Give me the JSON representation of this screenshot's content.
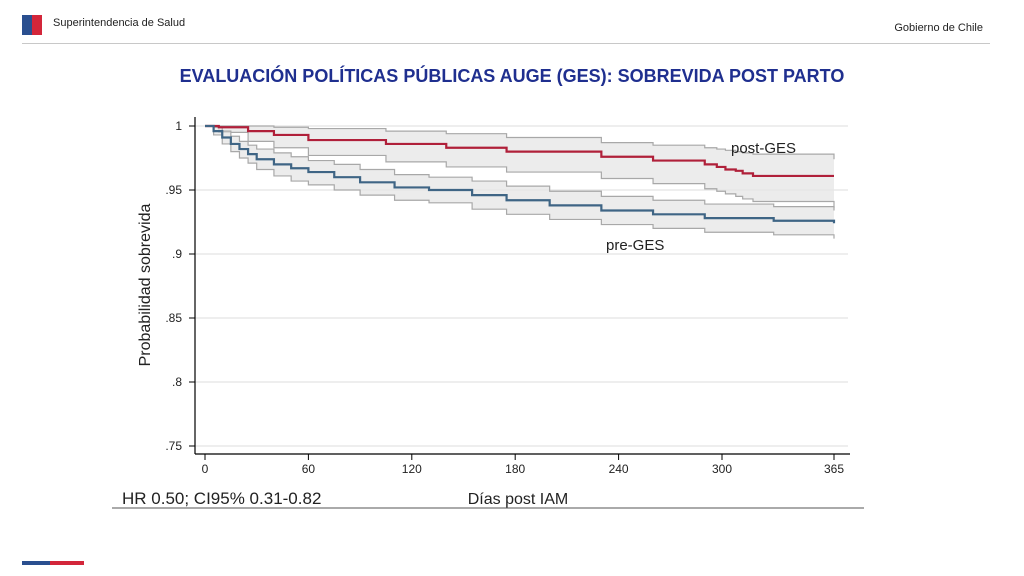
{
  "header": {
    "org_name": "Superintendencia de Salud",
    "government": "Gobierno de Chile"
  },
  "title": "EVALUACIÓN POLÍTICAS PÚBLICAS AUGE (GES): SOBREVIDA POST PARTO",
  "colors": {
    "title": "#1f2f8f",
    "post_ges": "#b0203a",
    "pre_ges": "#3f6585",
    "ci_band": "#e6e6e6",
    "flag_blue": "#2a4f8f",
    "flag_red": "#d3263a"
  },
  "chart_data": {
    "type": "line",
    "ylabel": "Probabilidad sobrevida",
    "xlabel": "Días post IAM",
    "annotation": "HR 0.50; CI95% 0.31-0.82",
    "xlim": [
      0,
      365
    ],
    "ylim": [
      0.75,
      1.0
    ],
    "x_ticks": [
      "0",
      "60",
      "120",
      "180",
      "240",
      "300",
      "365"
    ],
    "y_ticks": [
      "1",
      ".95",
      ".9",
      ".85",
      ".8",
      ".75"
    ],
    "grid": true,
    "step": true,
    "series": [
      {
        "name": "post-GES",
        "color": "#b0203a",
        "x": [
          0,
          8,
          25,
          40,
          60,
          105,
          140,
          175,
          230,
          260,
          290,
          297,
          302,
          308,
          312,
          318,
          365
        ],
        "values": [
          1.0,
          0.999,
          0.996,
          0.993,
          0.989,
          0.986,
          0.983,
          0.98,
          0.976,
          0.973,
          0.97,
          0.968,
          0.966,
          0.965,
          0.963,
          0.961,
          0.961
        ],
        "ci_upper": [
          1.0,
          1.0,
          1.0,
          0.999,
          0.998,
          0.996,
          0.994,
          0.991,
          0.987,
          0.985,
          0.983,
          0.982,
          0.981,
          0.98,
          0.979,
          0.978,
          0.974
        ],
        "ci_lower": [
          1.0,
          0.995,
          0.988,
          0.983,
          0.977,
          0.972,
          0.968,
          0.964,
          0.959,
          0.955,
          0.951,
          0.949,
          0.947,
          0.945,
          0.943,
          0.941,
          0.936
        ]
      },
      {
        "name": "pre-GES",
        "color": "#3f6585",
        "x": [
          0,
          5,
          10,
          15,
          20,
          25,
          30,
          40,
          50,
          60,
          75,
          90,
          110,
          130,
          155,
          175,
          200,
          230,
          260,
          290,
          330,
          365
        ],
        "values": [
          1.0,
          0.996,
          0.991,
          0.986,
          0.982,
          0.978,
          0.974,
          0.97,
          0.967,
          0.964,
          0.96,
          0.956,
          0.952,
          0.95,
          0.946,
          0.942,
          0.938,
          0.934,
          0.931,
          0.928,
          0.926,
          0.924
        ],
        "ci_upper": [
          1.0,
          0.999,
          0.996,
          0.992,
          0.988,
          0.985,
          0.982,
          0.979,
          0.976,
          0.973,
          0.97,
          0.966,
          0.962,
          0.96,
          0.957,
          0.953,
          0.949,
          0.945,
          0.942,
          0.939,
          0.937,
          0.934
        ],
        "ci_lower": [
          1.0,
          0.993,
          0.986,
          0.98,
          0.975,
          0.971,
          0.966,
          0.961,
          0.957,
          0.954,
          0.95,
          0.946,
          0.942,
          0.94,
          0.935,
          0.931,
          0.927,
          0.923,
          0.92,
          0.917,
          0.915,
          0.912
        ]
      }
    ]
  }
}
